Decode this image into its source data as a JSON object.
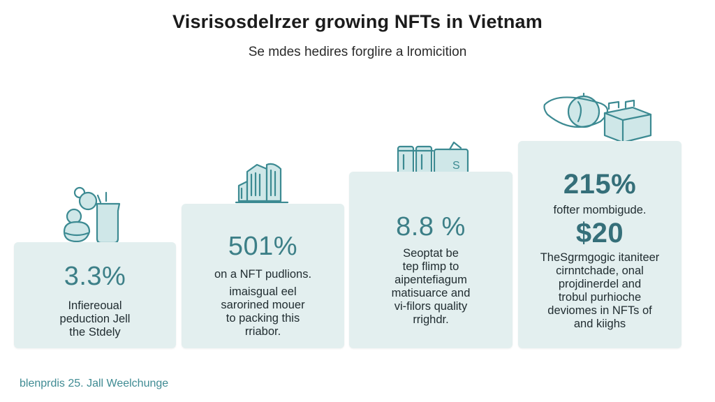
{
  "header": {
    "title": "Visrisosdelrzer growing NFTs in Vietnam",
    "subtitle": "Se mdes hedires forglire a lromicition"
  },
  "cards": [
    {
      "value": "3.3%",
      "lines": [
        "Infiereoual",
        "peduction Jell",
        "the Stdely"
      ],
      "icon": "coins-jar-icon"
    },
    {
      "value": "501%",
      "lines": [
        "on a NFT pudlions.",
        "imaisgual eel",
        "sarorined mouer",
        "to packing this",
        "rriabor."
      ],
      "icon": "city-buildings-icon"
    },
    {
      "value": "8.8 %",
      "lines": [
        "Seoptat be",
        "tep flimp to",
        "aipentefiagum",
        "matisuarce and",
        "vi-filors quality",
        "rrighdr."
      ],
      "icon": "wallet-cards-icon"
    },
    {
      "value": "215%",
      "sub_line": "fofter mombigude.",
      "value2": "$20",
      "lines": [
        "TheSgrmgogic itaniteer",
        "cirnntchade, onal",
        "projdinerdel and",
        "trobul purhioche",
        "deviomes in NFTs of",
        "and kiighs"
      ],
      "icon": "globe-package-icon"
    }
  ],
  "footer": {
    "text": "blenprdis 25. Jall Weelchunge"
  }
}
